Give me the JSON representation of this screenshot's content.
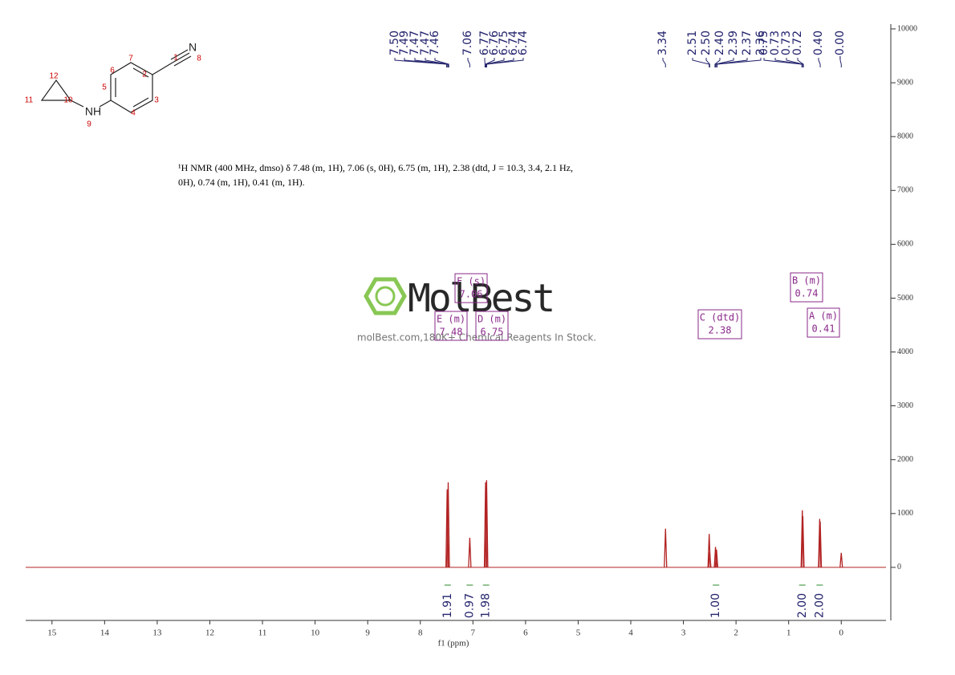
{
  "structure": {
    "labels": [
      "1",
      "2",
      "3",
      "4",
      "5",
      "6",
      "7",
      "8",
      "9",
      "10",
      "11",
      "12",
      "N",
      "NH"
    ]
  },
  "chart_data": {
    "type": "spectrum",
    "description": [
      "¹H NMR (400 MHz, dmso) δ 7.48 (m, 1H), 7.06 (s, 0H), 6.75 (m, 1H), 2.38 (dtd, J = 10.3, 3.4, 2.1 Hz,",
      "0H), 0.74 (m, 1H), 0.41 (m, 1H)."
    ],
    "watermark": {
      "logo": "MolBest",
      "tagline": "molBest.com,180K+ Chemical Reagents In Stock."
    },
    "x_label": "f1 (ppm)",
    "xlim": [
      15.5,
      -0.85
    ],
    "xticks": [
      15,
      14,
      13,
      12,
      11,
      10,
      9,
      8,
      7,
      6,
      5,
      4,
      3,
      2,
      1,
      0
    ],
    "ylim": [
      -1000,
      10000
    ],
    "yticks": [
      0,
      1000,
      2000,
      3000,
      4000,
      5000,
      6000,
      7000,
      8000,
      9000,
      10000
    ],
    "color": "#b22222",
    "x": [
      7.49,
      7.47,
      7.06,
      6.76,
      6.74,
      3.34,
      2.51,
      2.5,
      2.39,
      2.37,
      0.74,
      0.73,
      0.41,
      0.4,
      0
    ],
    "values": [
      1450,
      1580,
      550,
      1580,
      1620,
      720,
      620,
      280,
      380,
      330,
      1060,
      950,
      900,
      850,
      270
    ],
    "peak_labels": [
      {
        "value": 7.5,
        "label": "7.50"
      },
      {
        "value": 7.49,
        "label": "7.49"
      },
      {
        "value": 7.47,
        "label": "7.47"
      },
      {
        "value": 7.47,
        "label": "7.47"
      },
      {
        "value": 7.46,
        "label": "7.46"
      },
      {
        "value": 7.06,
        "label": "7.06"
      },
      {
        "value": 6.77,
        "label": "6.77"
      },
      {
        "value": 6.76,
        "label": "6.76"
      },
      {
        "value": 6.75,
        "label": "6.75"
      },
      {
        "value": 6.74,
        "label": "6.74"
      },
      {
        "value": 6.74,
        "label": "6.74"
      },
      {
        "value": 3.34,
        "label": "3.34"
      },
      {
        "value": 2.51,
        "label": "2.51"
      },
      {
        "value": 2.5,
        "label": "2.50"
      },
      {
        "value": 2.4,
        "label": "2.40"
      },
      {
        "value": 2.39,
        "label": "2.39"
      },
      {
        "value": 2.37,
        "label": "2.37"
      },
      {
        "value": 2.36,
        "label": "2.36"
      },
      {
        "value": 0.75,
        "label": "0.75"
      },
      {
        "value": 0.73,
        "label": "0.73"
      },
      {
        "value": 0.73,
        "label": "0.73"
      },
      {
        "value": 0.72,
        "label": "0.72"
      },
      {
        "value": 0.4,
        "label": "0.40"
      },
      {
        "value": 0,
        "label": "-0.00"
      }
    ],
    "multiplets": [
      {
        "label": "F (s)",
        "shift": 7.06
      },
      {
        "label": "E (m)",
        "shift": 7.48
      },
      {
        "label": "D (m)",
        "shift": 6.75
      },
      {
        "label": "C (dtd)",
        "shift": 2.38
      },
      {
        "label": "B (m)",
        "shift": 0.74
      },
      {
        "label": "A (m)",
        "shift": 0.41
      }
    ],
    "integrals": {
      "x": [
        7.48,
        7.06,
        6.75,
        2.38,
        0.74,
        0.41
      ],
      "values": [
        1.91,
        0.97,
        1.98,
        1,
        2,
        2
      ],
      "value_labels": [
        "1.91",
        "0.97",
        "1.98",
        "1.00",
        "2.00",
        "2.00"
      ]
    }
  }
}
